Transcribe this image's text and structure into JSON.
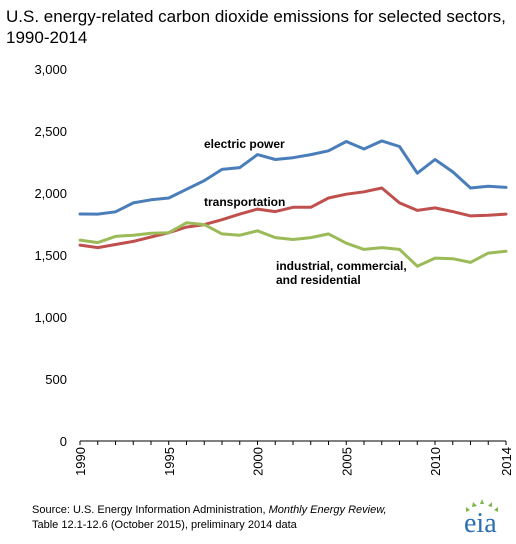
{
  "title": "U.S. energy-related carbon dioxide emissions for selected sectors, 1990-2014",
  "source": {
    "prefix": "Source: U.S. Energy Information Administration, ",
    "publication": "Monthly Energy Review,",
    "suffix": "Table 12.1-12.6 (October 2015), preliminary 2014 data"
  },
  "logo": {
    "text": "eia",
    "colors": [
      "#2b6fb0",
      "#7ab648"
    ]
  },
  "chart_data": {
    "type": "line",
    "title": "U.S. energy-related carbon dioxide emissions for selected sectors, 1990-2014",
    "xlabel": "",
    "ylabel": "",
    "x": [
      1990,
      1991,
      1992,
      1993,
      1994,
      1995,
      1996,
      1997,
      1998,
      1999,
      2000,
      2001,
      2002,
      2003,
      2004,
      2005,
      2006,
      2007,
      2008,
      2009,
      2010,
      2011,
      2012,
      2013,
      2014
    ],
    "xlim": [
      1990,
      2014
    ],
    "ylim": [
      0,
      3000
    ],
    "x_ticks": [
      1990,
      1995,
      2000,
      2005,
      2010,
      2014
    ],
    "x_tick_labels": [
      "1990",
      "1995",
      "2000",
      "2005",
      "2010",
      "2014"
    ],
    "y_ticks": [
      0,
      500,
      1000,
      1500,
      2000,
      2500,
      3000
    ],
    "y_tick_labels": [
      "0",
      "500",
      "1,000",
      "1,500",
      "2,000",
      "2,500",
      "3,000"
    ],
    "grid": false,
    "legend": "inline labels",
    "series": [
      {
        "name": "electric power",
        "color": "#4a7ebb",
        "values": [
          1831,
          1830,
          1848,
          1920,
          1945,
          1960,
          2030,
          2100,
          2190,
          2205,
          2310,
          2270,
          2285,
          2310,
          2340,
          2415,
          2355,
          2420,
          2375,
          2160,
          2270,
          2170,
          2040,
          2055,
          2045
        ]
      },
      {
        "name": "transportation",
        "color": "#c0504d",
        "values": [
          1580,
          1560,
          1585,
          1610,
          1645,
          1680,
          1725,
          1745,
          1785,
          1830,
          1870,
          1850,
          1885,
          1885,
          1960,
          1990,
          2010,
          2040,
          1920,
          1860,
          1880,
          1850,
          1815,
          1820,
          1830
        ]
      },
      {
        "name": "industrial, commercial, and residential",
        "name_lines": [
          "industrial, commercial,",
          "and residential"
        ],
        "color": "#9bbb59",
        "values": [
          1620,
          1600,
          1650,
          1660,
          1675,
          1680,
          1760,
          1745,
          1670,
          1660,
          1695,
          1640,
          1625,
          1640,
          1670,
          1595,
          1545,
          1560,
          1545,
          1410,
          1475,
          1470,
          1440,
          1515,
          1530
        ]
      }
    ]
  }
}
